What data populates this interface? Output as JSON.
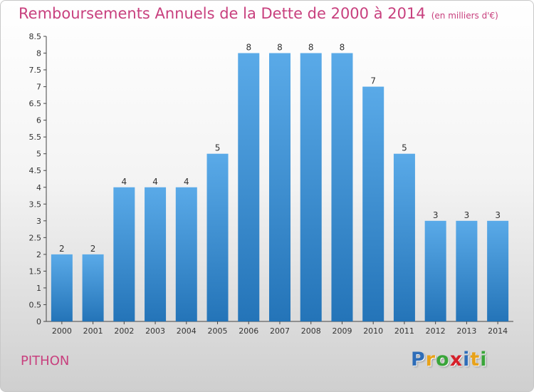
{
  "header": {
    "title": "Remboursements Annuels de la Dette de 2000 à 2014",
    "unit": "(en milliers d'€)"
  },
  "commune": "PITHON",
  "logo": {
    "letters": [
      "P",
      "r",
      "o",
      "x",
      "i",
      "t",
      "i"
    ],
    "colors": [
      "#2e6db8",
      "#e8a21a",
      "#3aa53a",
      "#d6202a",
      "#2e6db8",
      "#e8a21a",
      "#3aa53a"
    ]
  },
  "chart_data": {
    "type": "bar",
    "title": "Remboursements Annuels de la Dette de 2000 à 2014",
    "categories": [
      "2000",
      "2001",
      "2002",
      "2003",
      "2004",
      "2005",
      "2006",
      "2007",
      "2008",
      "2009",
      "2010",
      "2011",
      "2012",
      "2013",
      "2014"
    ],
    "values": [
      2,
      2,
      4,
      4,
      4,
      5,
      8,
      8,
      8,
      8,
      7,
      5,
      3,
      3,
      3
    ],
    "data_labels": [
      "2",
      "2",
      "4",
      "4",
      "4",
      "5",
      "8",
      "8",
      "8",
      "8",
      "7",
      "5",
      "3",
      "3",
      "3"
    ],
    "xlabel": "",
    "ylabel": "",
    "ylim": [
      0,
      8.5
    ],
    "yticks": [
      0,
      0.5,
      1,
      1.5,
      2,
      2.5,
      3,
      3.5,
      4,
      4.5,
      5,
      5.5,
      6,
      6.5,
      7,
      7.5,
      8,
      8.5
    ],
    "ytick_labels": [
      "0",
      "0.5",
      "1",
      "1.5",
      "2",
      "2.5",
      "3",
      "3.5",
      "4",
      "4.5",
      "5",
      "5.5",
      "6",
      "6.5",
      "7",
      "7.5",
      "8",
      "8.5"
    ],
    "grid": false,
    "legend": "none",
    "bar_color": "#4a98d8"
  }
}
